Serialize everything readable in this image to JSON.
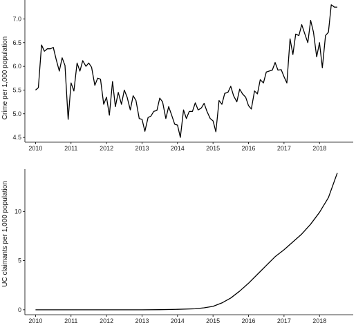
{
  "chart_data": [
    {
      "type": "line",
      "ylabel": "Crime per 1,000 population",
      "xlim": [
        2009.7,
        2018.95
      ],
      "ylim": [
        4.4,
        7.4
      ],
      "x_ticks": [
        2010,
        2011,
        2012,
        2013,
        2014,
        2015,
        2016,
        2017,
        2018
      ],
      "x_tick_labels": [
        "2010",
        "2011",
        "2012",
        "2013",
        "2014",
        "2015",
        "2016",
        "2017",
        "2018"
      ],
      "y_ticks": [
        4.5,
        5.0,
        5.5,
        6.0,
        6.5,
        7.0
      ],
      "y_tick_labels": [
        "4.5",
        "5.0",
        "5.5",
        "6.0",
        "6.5",
        "7.0"
      ],
      "grid": false,
      "series": [
        {
          "x": [
            2010.0,
            2010.08,
            2010.17,
            2010.25,
            2010.33,
            2010.42,
            2010.5,
            2010.58,
            2010.67,
            2010.75,
            2010.83,
            2010.92,
            2011.0,
            2011.08,
            2011.17,
            2011.25,
            2011.33,
            2011.42,
            2011.5,
            2011.58,
            2011.67,
            2011.75,
            2011.83,
            2011.92,
            2012.0,
            2012.08,
            2012.17,
            2012.25,
            2012.33,
            2012.42,
            2012.5,
            2012.58,
            2012.67,
            2012.75,
            2012.83,
            2012.92,
            2013.0,
            2013.08,
            2013.17,
            2013.25,
            2013.33,
            2013.42,
            2013.5,
            2013.58,
            2013.67,
            2013.75,
            2013.83,
            2013.92,
            2014.0,
            2014.08,
            2014.17,
            2014.25,
            2014.33,
            2014.42,
            2014.5,
            2014.58,
            2014.67,
            2014.75,
            2014.83,
            2014.92,
            2015.0,
            2015.08,
            2015.17,
            2015.25,
            2015.33,
            2015.42,
            2015.5,
            2015.58,
            2015.67,
            2015.75,
            2015.83,
            2015.92,
            2016.0,
            2016.08,
            2016.17,
            2016.25,
            2016.33,
            2016.42,
            2016.5,
            2016.58,
            2016.67,
            2016.75,
            2016.83,
            2016.92,
            2017.0,
            2017.08,
            2017.17,
            2017.25,
            2017.33,
            2017.42,
            2017.5,
            2017.58,
            2017.67,
            2017.75,
            2017.83,
            2017.92,
            2018.0,
            2018.08,
            2018.17,
            2018.25,
            2018.33,
            2018.42,
            2018.5
          ],
          "y": [
            5.5,
            5.55,
            6.45,
            6.32,
            6.37,
            6.37,
            6.4,
            6.15,
            5.9,
            6.18,
            6.02,
            4.88,
            5.65,
            5.48,
            6.07,
            5.9,
            6.12,
            6.0,
            6.07,
            5.98,
            5.6,
            5.75,
            5.73,
            5.2,
            5.35,
            4.97,
            5.68,
            5.15,
            5.45,
            5.2,
            5.5,
            5.35,
            5.08,
            5.38,
            5.28,
            4.9,
            4.88,
            4.63,
            4.92,
            4.95,
            5.05,
            5.07,
            5.33,
            5.25,
            4.9,
            5.15,
            4.98,
            4.78,
            4.76,
            4.5,
            5.08,
            4.9,
            5.05,
            5.05,
            5.23,
            5.08,
            5.12,
            5.22,
            5.05,
            4.9,
            4.85,
            4.62,
            5.28,
            5.2,
            5.43,
            5.45,
            5.58,
            5.38,
            5.25,
            5.52,
            5.42,
            5.35,
            5.17,
            5.1,
            5.48,
            5.42,
            5.72,
            5.65,
            5.88,
            5.9,
            5.92,
            6.08,
            5.92,
            5.93,
            5.78,
            5.65,
            6.58,
            6.25,
            6.68,
            6.65,
            6.88,
            6.7,
            6.5,
            6.97,
            6.72,
            6.2,
            6.5,
            5.97,
            6.65,
            6.72,
            7.3,
            7.25,
            7.25
          ]
        }
      ]
    },
    {
      "type": "line",
      "ylabel": "UC claimants per 1,000 population",
      "xlim": [
        2009.7,
        2018.95
      ],
      "ylim": [
        -0.5,
        14.3
      ],
      "x_ticks": [
        2010,
        2011,
        2012,
        2013,
        2014,
        2015,
        2016,
        2017,
        2018
      ],
      "x_tick_labels": [
        "2010",
        "2011",
        "2012",
        "2013",
        "2014",
        "2015",
        "2016",
        "2017",
        "2018"
      ],
      "y_ticks": [
        0,
        5,
        10
      ],
      "y_tick_labels": [
        "0",
        "5",
        "10"
      ],
      "grid": false,
      "series": [
        {
          "x": [
            2010.0,
            2011.0,
            2012.0,
            2013.0,
            2013.5,
            2014.0,
            2014.5,
            2014.75,
            2015.0,
            2015.25,
            2015.5,
            2015.75,
            2016.0,
            2016.25,
            2016.5,
            2016.75,
            2017.0,
            2017.25,
            2017.5,
            2017.75,
            2018.0,
            2018.25,
            2018.5
          ],
          "y": [
            0,
            0,
            0,
            0,
            0.01,
            0.05,
            0.1,
            0.2,
            0.35,
            0.7,
            1.2,
            1.9,
            2.7,
            3.6,
            4.5,
            5.4,
            6.1,
            6.9,
            7.7,
            8.7,
            9.9,
            11.4,
            13.9
          ]
        }
      ]
    }
  ]
}
